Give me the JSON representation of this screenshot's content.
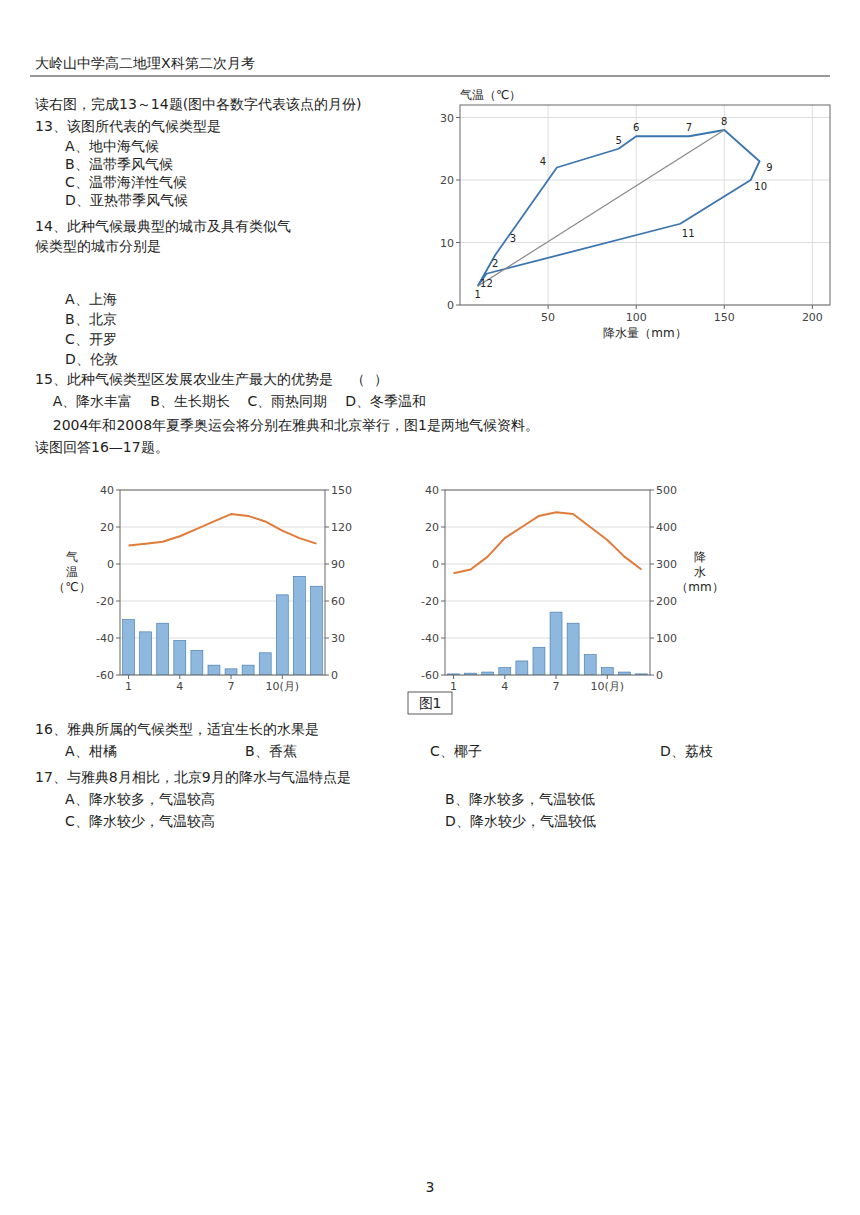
{
  "title": "大岭山中学高二地理X科第二次月考",
  "annotations": [
    "读右图，完成13～14题(图中各数字代表该点的月份)",
    "13、该图所代表的气候类型是",
    "A、地中海气候",
    "B、温带季风气候",
    "C、温带海洋性气候",
    "D、亚热带季风气候",
    "14、此种气候最典型的城市及具有类似气",
    "候类型的城市分别是",
    "A、上海",
    "B、北京",
    "C、开罗",
    "D、伦敦",
    "15、此种气候类型区发展农业生产最大的优势是    （  ）",
    "    A、降水丰富    B、生长期长    C、雨热同期    D、冬季温和",
    "    2004年和2008年夏季奥运会将分别在雅典和北京举行，图1是两地气候资料。",
    "读图回答16—17题。",
    "图1",
    "16、雅典所属的气候类型，适宜生长的水果是",
    "A、柑橘",
    "B、香蕉",
    "C、椰子",
    "D、荔枝",
    "17、与雅典8月相比，北京9月的降水与气温特点是",
    "A、降水较多，气温较高",
    "B、降水较多，气温较低",
    "C、降水较少，气温较高",
    "D、降水较少，气温较低",
    "3"
  ],
  "chart_data": [
    {
      "type": "line",
      "xlabel": "降水量（mm）",
      "ylabel": "气温（℃）",
      "xlim": [
        0,
        210
      ],
      "ylim": [
        0,
        32
      ],
      "xticks": [
        50,
        100,
        150,
        200
      ],
      "yticks": [
        0,
        10,
        20,
        30
      ],
      "grid": true,
      "series": [
        {
          "x": [
            10,
            20,
            30,
            55,
            90,
            100,
            130,
            150,
            170,
            165,
            125,
            15,
            10
          ],
          "values": [
            3,
            8,
            12,
            22,
            25,
            27,
            27,
            28,
            23,
            20,
            13,
            5,
            3
          ]
        },
        {
          "x": [
            10,
            150
          ],
          "values": [
            3,
            28
          ]
        }
      ],
      "point_labels": [
        "1",
        "2",
        "3",
        "4",
        "5",
        "6",
        "7",
        "8",
        "9",
        "10",
        "11",
        "12"
      ]
    },
    {
      "type": "bar",
      "ylabel": "气温（℃）",
      "categories": [
        "1",
        null,
        null,
        "4",
        null,
        null,
        "7",
        null,
        null,
        "10(月)",
        null,
        null
      ],
      "ylim": [
        -60,
        40
      ],
      "yticks": [
        -60,
        -40,
        -20,
        0,
        20,
        40
      ],
      "y2lim": [
        0,
        150
      ],
      "y2ticks": [
        0,
        30,
        60,
        90,
        120,
        150
      ],
      "grid": true,
      "series": [
        {
          "type": "bar",
          "axis": "y2",
          "values": [
            45,
            35,
            42,
            28,
            20,
            8,
            5,
            8,
            18,
            65,
            80,
            72
          ]
        },
        {
          "type": "line",
          "values": [
            10,
            11,
            12,
            15,
            19,
            23,
            27,
            26,
            23,
            18,
            14,
            11
          ]
        }
      ]
    },
    {
      "type": "bar",
      "y2label": "降水（mm）",
      "categories": [
        "1",
        null,
        null,
        "4",
        null,
        null,
        "7",
        null,
        null,
        "10(月)",
        null,
        null
      ],
      "ylim": [
        -60,
        40
      ],
      "yticks": [
        -60,
        -40,
        -20,
        0,
        20,
        40
      ],
      "y2lim": [
        0,
        500
      ],
      "y2ticks": [
        0,
        100,
        200,
        300,
        400,
        500
      ],
      "grid": true,
      "series": [
        {
          "type": "bar",
          "axis": "y2",
          "values": [
            3,
            5,
            8,
            20,
            38,
            75,
            170,
            140,
            55,
            20,
            8,
            3
          ]
        },
        {
          "type": "line",
          "values": [
            -5,
            -3,
            4,
            14,
            20,
            26,
            28,
            27,
            20,
            13,
            4,
            -3
          ]
        }
      ]
    }
  ]
}
